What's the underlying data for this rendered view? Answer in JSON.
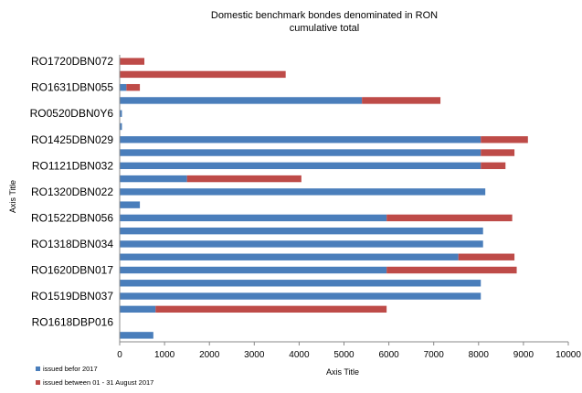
{
  "chart_data": {
    "type": "bar",
    "orientation": "horizontal",
    "stacked": true,
    "title": "Domestic benchmark bondes denominated in RON",
    "subtitle": "cumulative total",
    "xlabel": "Axis Title",
    "ylabel": "Axis Title",
    "xlim": [
      0,
      10000
    ],
    "xticks": [
      "0",
      "1000",
      "2000",
      "3000",
      "4000",
      "5000",
      "6000",
      "7000",
      "8000",
      "9000",
      "10000"
    ],
    "grid": false,
    "legend_position": "bottom-left",
    "categories": [
      "",
      "RO1618DBP016",
      "",
      "RO1519DBN037",
      "",
      "RO1620DBN017",
      "",
      "RO1318DBN034",
      "",
      "RO1522DBN056",
      "",
      "RO1320DBN022",
      "",
      "RO1121DBN032",
      "",
      "RO1425DBN029",
      "",
      "RO0520DBN0Y6",
      "",
      "RO1631DBN055",
      "",
      "RO1720DBN072"
    ],
    "series": [
      {
        "name": "issued befor 2017",
        "color": "#4a7ebb",
        "values": [
          750,
          0,
          800,
          8050,
          8050,
          5950,
          7550,
          8100,
          8100,
          5950,
          450,
          8150,
          1500,
          8050,
          8050,
          8050,
          50,
          50,
          5400,
          150,
          0,
          0
        ]
      },
      {
        "name": "issued between 01 - 31 August 2017",
        "color": "#be4b48",
        "values": [
          0,
          0,
          5150,
          0,
          0,
          2900,
          1250,
          0,
          0,
          2800,
          0,
          0,
          2550,
          550,
          750,
          1050,
          0,
          0,
          1750,
          300,
          3700,
          550
        ]
      }
    ]
  }
}
